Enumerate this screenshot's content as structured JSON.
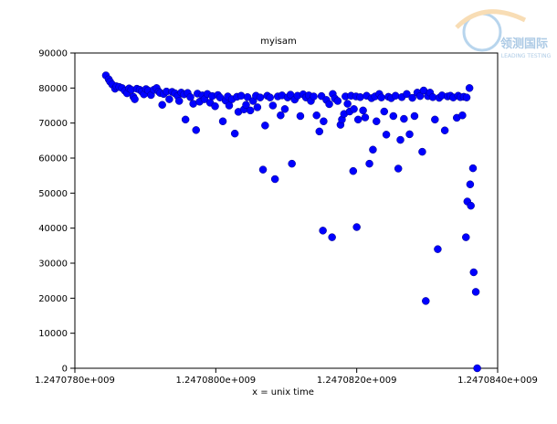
{
  "watermark": {
    "text": "领测国际",
    "subtext": "LEADING TESTING"
  },
  "chart_data": {
    "type": "scatter",
    "title": "myisam",
    "x_label": "x = unix time",
    "color": "#0000ff",
    "xlim": [
      1247078000,
      1247084000
    ],
    "xticks": [
      {
        "value": 1247078000,
        "label": "1.2470780e+009"
      },
      {
        "value": 1247080000,
        "label": "1.2470800e+009"
      },
      {
        "value": 1247082000,
        "label": "1.2470820e+009"
      },
      {
        "value": 1247084000,
        "label": "1.2470840e+009"
      }
    ],
    "ylim": [
      0,
      90000
    ],
    "yticks": [
      0,
      10000,
      20000,
      30000,
      40000,
      50000,
      60000,
      70000,
      80000,
      90000
    ],
    "x": [
      1247078440,
      1247078480,
      1247078500,
      1247078530,
      1247078570,
      1247078590,
      1247078630,
      1247078670,
      1247078710,
      1247078740,
      1247078770,
      1247078800,
      1247078830,
      1247078850,
      1247078880,
      1247078920,
      1247078950,
      1247078980,
      1247079010,
      1247079040,
      1247079080,
      1247079120,
      1247079160,
      1247079190,
      1247079210,
      1247079240,
      1247079260,
      1247079300,
      1247079340,
      1247079380,
      1247079420,
      1247079460,
      1247079480,
      1247079510,
      1247079550,
      1247079570,
      1247079600,
      1247079640,
      1247079680,
      1247079720,
      1247079740,
      1247079770,
      1247079810,
      1247079840,
      1247079880,
      1247079920,
      1247079950,
      1247079990,
      1247080030,
      1247080060,
      1247080100,
      1247080140,
      1247080170,
      1247080190,
      1247080230,
      1247080270,
      1247080300,
      1247080320,
      1247080360,
      1247080400,
      1247080430,
      1247080450,
      1247080490,
      1247080530,
      1247080570,
      1247080590,
      1247080630,
      1247080670,
      1247080700,
      1247080730,
      1247080770,
      1247080810,
      1247080840,
      1247080880,
      1247080920,
      1247080940,
      1247080980,
      1247081020,
      1247081060,
      1247081080,
      1247081120,
      1247081160,
      1247081200,
      1247081240,
      1247081280,
      1247081320,
      1247081350,
      1247081390,
      1247081430,
      1247081470,
      1247081500,
      1247081520,
      1247081530,
      1247081570,
      1247081610,
      1247081650,
      1247081660,
      1247081690,
      1247081730,
      1247081770,
      1247081790,
      1247081820,
      1247081840,
      1247081870,
      1247081900,
      1247081920,
      1247081950,
      1247081960,
      1247081990,
      1247082000,
      1247082020,
      1247082050,
      1247082090,
      1247082120,
      1247082140,
      1247082180,
      1247082210,
      1247082230,
      1247082260,
      1247082280,
      1247082320,
      1247082350,
      1247082390,
      1247082420,
      1247082450,
      1247082490,
      1247082520,
      1247082550,
      1247082590,
      1247082620,
      1247082640,
      1247082670,
      1247082710,
      1247082750,
      1247082790,
      1247082820,
      1247082860,
      1247082900,
      1247082930,
      1247082950,
      1247082980,
      1247083010,
      1247083040,
      1247083080,
      1247083110,
      1247083150,
      1247083170,
      1247083210,
      1247083250,
      1247083290,
      1247083330,
      1247083370,
      1247083420,
      1247083440,
      1247083470,
      1247083500,
      1247083520,
      1247083550,
      1247083560,
      1247083570,
      1247083600,
      1247083610,
      1247083620,
      1247083650,
      1247083660,
      1247083690,
      1247083710
    ],
    "values": [
      83600,
      82500,
      81800,
      81000,
      79800,
      80500,
      80300,
      80000,
      79200,
      78500,
      79900,
      79500,
      77500,
      76800,
      79800,
      79500,
      79000,
      78200,
      79700,
      79300,
      78000,
      79500,
      80000,
      79000,
      78600,
      75200,
      78300,
      79000,
      76800,
      78900,
      78500,
      77700,
      76300,
      78700,
      78200,
      71000,
      78600,
      77400,
      75500,
      68000,
      78400,
      76100,
      77900,
      76800,
      78300,
      75800,
      77700,
      74800,
      78000,
      77300,
      70500,
      76400,
      77600,
      75000,
      76800,
      67000,
      77500,
      73200,
      77800,
      73900,
      75200,
      77400,
      73600,
      76300,
      77800,
      74500,
      77300,
      56700,
      69300,
      77800,
      77300,
      75000,
      54000,
      77600,
      72200,
      77900,
      74000,
      77300,
      78100,
      58400,
      76700,
      77800,
      72000,
      78200,
      77300,
      77900,
      76300,
      77600,
      72200,
      67600,
      77700,
      39300,
      70500,
      76600,
      75400,
      37400,
      78300,
      77000,
      76300,
      69500,
      71000,
      72600,
      77600,
      75500,
      73300,
      77800,
      56300,
      74000,
      77600,
      40300,
      71000,
      77400,
      73600,
      71600,
      77800,
      58400,
      77100,
      62400,
      77600,
      70500,
      78300,
      77300,
      73300,
      66700,
      77500,
      77100,
      72000,
      77800,
      57000,
      65200,
      77400,
      71200,
      78300,
      66800,
      77200,
      72000,
      78700,
      77700,
      61800,
      79300,
      19200,
      77700,
      78700,
      77400,
      71000,
      34000,
      77200,
      77900,
      67900,
      77600,
      77800,
      77300,
      71500,
      77800,
      77400,
      72200,
      77500,
      37400,
      77300,
      47600,
      80000,
      52500,
      46400,
      57100,
      27400,
      21800,
      0
    ]
  }
}
